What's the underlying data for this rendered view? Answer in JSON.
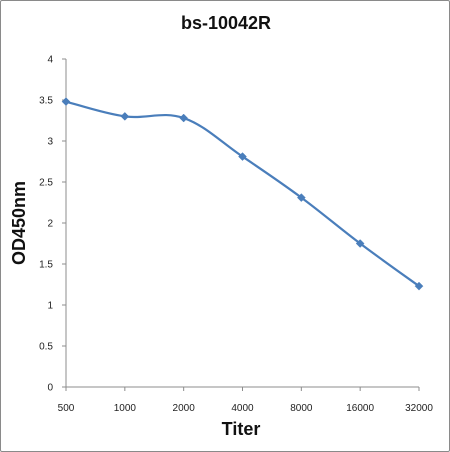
{
  "chart_data": {
    "type": "line",
    "title": "bs-10042R",
    "xlabel": "Titer",
    "ylabel": "OD450nm",
    "categories": [
      "500",
      "1000",
      "2000",
      "4000",
      "8000",
      "16000",
      "32000"
    ],
    "series": [
      {
        "values": [
          3.48,
          3.3,
          3.28,
          2.81,
          2.31,
          1.75,
          1.23
        ],
        "color": "#4a7ebb",
        "marker": "diamond"
      }
    ],
    "ylim": [
      0,
      4
    ],
    "yticks": [
      0,
      0.5,
      1,
      1.5,
      2,
      2.5,
      3,
      3.5,
      4
    ],
    "ytick_labels": [
      "0",
      "0.5",
      "1",
      "1.5",
      "2",
      "2.5",
      "3",
      "3.5",
      "4"
    ],
    "grid": false,
    "legend": "none",
    "smooth": true
  }
}
